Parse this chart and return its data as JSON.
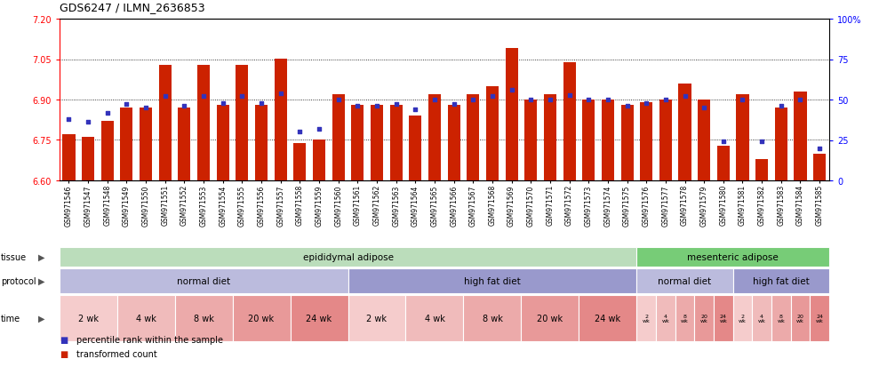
{
  "title": "GDS6247 / ILMN_2636853",
  "samples": [
    "GSM971546",
    "GSM971547",
    "GSM971548",
    "GSM971549",
    "GSM971550",
    "GSM971551",
    "GSM971552",
    "GSM971553",
    "GSM971554",
    "GSM971555",
    "GSM971556",
    "GSM971557",
    "GSM971558",
    "GSM971559",
    "GSM971560",
    "GSM971561",
    "GSM971562",
    "GSM971563",
    "GSM971564",
    "GSM971565",
    "GSM971566",
    "GSM971567",
    "GSM971568",
    "GSM971569",
    "GSM971570",
    "GSM971571",
    "GSM971572",
    "GSM971573",
    "GSM971574",
    "GSM971575",
    "GSM971576",
    "GSM971577",
    "GSM971578",
    "GSM971579",
    "GSM971580",
    "GSM971581",
    "GSM971582",
    "GSM971583",
    "GSM971584",
    "GSM971585"
  ],
  "transformed_count": [
    6.77,
    6.76,
    6.82,
    6.87,
    6.87,
    7.03,
    6.87,
    7.03,
    6.88,
    7.03,
    6.88,
    7.05,
    6.74,
    6.75,
    6.92,
    6.88,
    6.88,
    6.88,
    6.84,
    6.92,
    6.88,
    6.92,
    6.95,
    7.09,
    6.9,
    6.92,
    7.04,
    6.9,
    6.9,
    6.88,
    6.89,
    6.9,
    6.96,
    6.9,
    6.73,
    6.92,
    6.68,
    6.87,
    6.93,
    6.7
  ],
  "percentile_rank": [
    38,
    36,
    42,
    47,
    45,
    52,
    46,
    52,
    48,
    52,
    48,
    54,
    30,
    32,
    50,
    46,
    46,
    47,
    44,
    50,
    47,
    50,
    52,
    56,
    50,
    50,
    53,
    50,
    50,
    46,
    48,
    50,
    52,
    45,
    24,
    50,
    24,
    46,
    50,
    20
  ],
  "ylim_left": [
    6.6,
    7.2
  ],
  "ylim_right": [
    0,
    100
  ],
  "yticks_left": [
    6.6,
    6.75,
    6.9,
    7.05,
    7.2
  ],
  "yticks_right": [
    0,
    25,
    50,
    75,
    100
  ],
  "bar_color": "#cc2200",
  "marker_color": "#3333bb",
  "tissue_groups": [
    {
      "label": "epididymal adipose",
      "start": 0,
      "end": 29,
      "color": "#bbddbb"
    },
    {
      "label": "mesenteric adipose",
      "start": 30,
      "end": 39,
      "color": "#77cc77"
    }
  ],
  "protocol_groups": [
    {
      "label": "normal diet",
      "start": 0,
      "end": 14,
      "color": "#bbbbdd"
    },
    {
      "label": "high fat diet",
      "start": 15,
      "end": 29,
      "color": "#9999cc"
    },
    {
      "label": "normal diet",
      "start": 30,
      "end": 34,
      "color": "#bbbbdd"
    },
    {
      "label": "high fat diet",
      "start": 35,
      "end": 39,
      "color": "#9999cc"
    }
  ],
  "time_per_sample": [
    "2 wk",
    "2 wk",
    "2 wk",
    "4 wk",
    "4 wk",
    "4 wk",
    "8 wk",
    "8 wk",
    "8 wk",
    "20 wk",
    "20 wk",
    "20 wk",
    "24 wk",
    "24 wk",
    "24 wk",
    "2 wk",
    "2 wk",
    "2 wk",
    "4 wk",
    "4 wk",
    "4 wk",
    "8 wk",
    "8 wk",
    "8 wk",
    "20 wk",
    "20 wk",
    "20 wk",
    "24 wk",
    "24 wk",
    "24 wk",
    "2 wk",
    "4 wk",
    "8 wk",
    "20 wk",
    "24 wk",
    "2 wk",
    "4 wk",
    "8 wk",
    "20 wk",
    "24 wk"
  ],
  "time_colors": {
    "2 wk": "#f5cccc",
    "4 wk": "#f0bbbb",
    "8 wk": "#ecaaaa",
    "20 wk": "#e89999",
    "24 wk": "#e48888"
  }
}
